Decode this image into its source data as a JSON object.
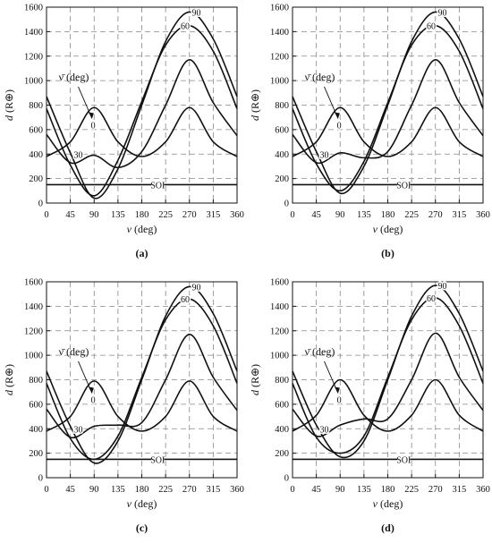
{
  "panel_labels": [
    "(a)",
    "(b)",
    "(c)",
    "(d)"
  ],
  "legend_title": "ν̄ (deg)",
  "soi_label": "SOI",
  "colors": {
    "curve": "#111111",
    "grid": "#888888",
    "frame": "#111111"
  },
  "chart_data": [
    {
      "type": "line",
      "panel": "(a)",
      "xlabel": "ν (deg)",
      "ylabel": "d (R⊕)",
      "xlim": [
        0,
        360
      ],
      "ylim": [
        0,
        1600
      ],
      "xticks": [
        0,
        45,
        90,
        135,
        180,
        225,
        270,
        315,
        360
      ],
      "yticks": [
        0,
        200,
        400,
        600,
        800,
        1000,
        1200,
        1400,
        1600
      ],
      "grid": true,
      "soi": 150,
      "series": [
        {
          "name": "0",
          "x": [
            0,
            45,
            90,
            135,
            180,
            225,
            270,
            315,
            360
          ],
          "y": [
            380,
            500,
            780,
            500,
            380,
            500,
            780,
            500,
            380
          ]
        },
        {
          "name": "30",
          "x": [
            0,
            45,
            90,
            135,
            180,
            225,
            270,
            315,
            360
          ],
          "y": [
            560,
            330,
            390,
            290,
            420,
            800,
            1170,
            820,
            550
          ]
        },
        {
          "name": "60",
          "x": [
            0,
            45,
            90,
            135,
            180,
            225,
            270,
            315,
            360
          ],
          "y": [
            770,
            310,
            60,
            350,
            830,
            1290,
            1450,
            1240,
            770
          ]
        },
        {
          "name": "90",
          "x": [
            0,
            45,
            90,
            135,
            180,
            225,
            270,
            315,
            360
          ],
          "y": [
            870,
            410,
            40,
            280,
            800,
            1320,
            1560,
            1340,
            870
          ]
        }
      ],
      "curve_labels": [
        "0",
        "30",
        "60",
        "90"
      ]
    },
    {
      "type": "line",
      "panel": "(b)",
      "xlabel": "ν (deg)",
      "ylabel": "d (R⊕)",
      "xlim": [
        0,
        360
      ],
      "ylim": [
        0,
        1600
      ],
      "xticks": [
        0,
        45,
        90,
        135,
        180,
        225,
        270,
        315,
        360
      ],
      "yticks": [
        0,
        200,
        400,
        600,
        800,
        1000,
        1200,
        1400,
        1600
      ],
      "grid": true,
      "soi": 150,
      "series": [
        {
          "name": "0",
          "x": [
            0,
            45,
            90,
            135,
            180,
            225,
            270,
            315,
            360
          ],
          "y": [
            380,
            500,
            780,
            500,
            380,
            500,
            780,
            500,
            380
          ]
        },
        {
          "name": "30",
          "x": [
            0,
            45,
            90,
            135,
            180,
            225,
            270,
            315,
            360
          ],
          "y": [
            560,
            330,
            410,
            370,
            420,
            800,
            1170,
            820,
            550
          ]
        },
        {
          "name": "60",
          "x": [
            0,
            45,
            90,
            135,
            180,
            225,
            270,
            315,
            360
          ],
          "y": [
            770,
            320,
            100,
            340,
            820,
            1290,
            1450,
            1240,
            770
          ]
        },
        {
          "name": "90",
          "x": [
            0,
            45,
            90,
            135,
            180,
            225,
            270,
            315,
            360
          ],
          "y": [
            870,
            420,
            80,
            300,
            800,
            1320,
            1560,
            1340,
            870
          ]
        }
      ],
      "curve_labels": [
        "0",
        "30",
        "60",
        "90"
      ]
    },
    {
      "type": "line",
      "panel": "(c)",
      "xlabel": "ν (deg)",
      "ylabel": "d (R⊕)",
      "xlim": [
        0,
        360
      ],
      "ylim": [
        0,
        1600
      ],
      "xticks": [
        0,
        45,
        90,
        135,
        180,
        225,
        270,
        315,
        360
      ],
      "yticks": [
        0,
        200,
        400,
        600,
        800,
        1000,
        1200,
        1400,
        1600
      ],
      "grid": true,
      "soi": 150,
      "series": [
        {
          "name": "0",
          "x": [
            0,
            45,
            90,
            135,
            180,
            225,
            270,
            315,
            360
          ],
          "y": [
            380,
            500,
            790,
            500,
            380,
            500,
            790,
            500,
            380
          ]
        },
        {
          "name": "30",
          "x": [
            0,
            45,
            90,
            135,
            180,
            225,
            270,
            315,
            360
          ],
          "y": [
            560,
            330,
            420,
            430,
            450,
            800,
            1170,
            820,
            550
          ]
        },
        {
          "name": "60",
          "x": [
            0,
            45,
            90,
            135,
            180,
            225,
            270,
            315,
            360
          ],
          "y": [
            770,
            320,
            150,
            340,
            820,
            1290,
            1460,
            1240,
            770
          ]
        },
        {
          "name": "90",
          "x": [
            0,
            45,
            90,
            135,
            180,
            225,
            270,
            315,
            360
          ],
          "y": [
            870,
            420,
            120,
            300,
            800,
            1320,
            1560,
            1340,
            870
          ]
        }
      ],
      "curve_labels": [
        "0",
        "30",
        "60",
        "90"
      ]
    },
    {
      "type": "line",
      "panel": "(d)",
      "xlabel": "ν (deg)",
      "ylabel": "d (R⊕)",
      "xlim": [
        0,
        360
      ],
      "ylim": [
        0,
        1600
      ],
      "xticks": [
        0,
        45,
        90,
        135,
        180,
        225,
        270,
        315,
        360
      ],
      "yticks": [
        0,
        200,
        400,
        600,
        800,
        1000,
        1200,
        1400,
        1600
      ],
      "grid": true,
      "soi": 150,
      "series": [
        {
          "name": "0",
          "x": [
            0,
            45,
            90,
            135,
            180,
            225,
            270,
            315,
            360
          ],
          "y": [
            380,
            510,
            800,
            510,
            380,
            510,
            800,
            510,
            380
          ]
        },
        {
          "name": "30",
          "x": [
            0,
            45,
            90,
            135,
            180,
            225,
            270,
            315,
            360
          ],
          "y": [
            560,
            340,
            430,
            480,
            480,
            800,
            1180,
            820,
            550
          ]
        },
        {
          "name": "60",
          "x": [
            0,
            45,
            90,
            135,
            180,
            225,
            270,
            315,
            360
          ],
          "y": [
            770,
            330,
            200,
            340,
            820,
            1290,
            1470,
            1240,
            770
          ]
        },
        {
          "name": "90",
          "x": [
            0,
            45,
            90,
            135,
            180,
            225,
            270,
            315,
            360
          ],
          "y": [
            870,
            430,
            170,
            300,
            800,
            1320,
            1570,
            1340,
            870
          ]
        }
      ],
      "curve_labels": [
        "0",
        "30",
        "60",
        "90"
      ]
    }
  ]
}
